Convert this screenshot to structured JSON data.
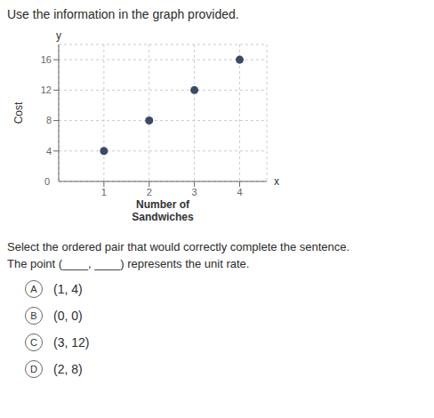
{
  "chart_data": {
    "type": "scatter",
    "title": "Use the information in the graph provided.",
    "xlabel": "Number of\nSandwiches",
    "ylabel": "Cost",
    "x": [
      1,
      2,
      3,
      4
    ],
    "values": [
      4,
      8,
      12,
      16
    ],
    "color": "#3a4a6b",
    "xlim": [
      0,
      4.6
    ],
    "ylim": [
      0,
      18
    ],
    "xticks": [
      1,
      2,
      3,
      4
    ],
    "yticks": [
      4,
      8,
      12,
      16
    ],
    "grid": true,
    "annotations": [
      "x",
      "y",
      "0"
    ]
  },
  "question_lines": [
    "Select the ordered pair that would correctly complete the sentence.",
    "The point (____, ____) represents the unit rate."
  ],
  "choices": [
    {
      "label": "A",
      "text": "(1, 4)"
    },
    {
      "label": "B",
      "text": "(0, 0)"
    },
    {
      "label": "C",
      "text": "(3, 12)"
    },
    {
      "label": "D",
      "text": "(2, 8)"
    }
  ]
}
